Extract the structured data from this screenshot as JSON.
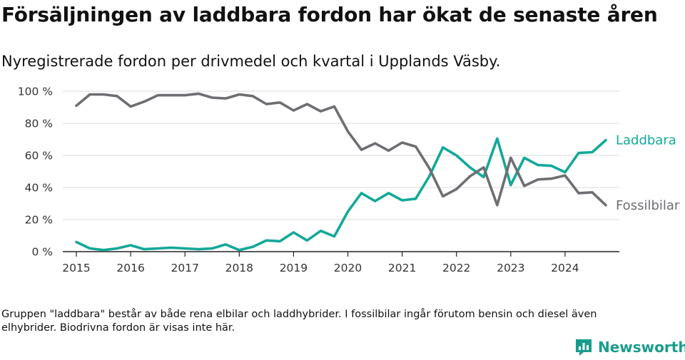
{
  "title": "Försäljningen av laddbara fordon har ökat de senaste åren",
  "subtitle": "Nyregistrerade fordon per drivmedel och kvartal i Upplands Väsby.",
  "footnote": "Gruppen \"laddbara\" består av både rena elbilar och laddhybrider. I fossilbilar ingår förutom bensin och diesel även elhybrider. Biodrivna fordon är visas inte här.",
  "brand": {
    "name": "Newsworthy",
    "icon": "newsworthy-logo-icon",
    "color": "#1a9c8c"
  },
  "chart_data": {
    "type": "line",
    "title": "Försäljningen av laddbara fordon har ökat de senaste åren",
    "subtitle": "Nyregistrerade fordon per drivmedel och kvartal i Upplands Väsby.",
    "xlabel": "",
    "ylabel": "",
    "x_start": 2015.0,
    "x_step": 0.25,
    "xlim": [
      2014.75,
      2025.0
    ],
    "ylim": [
      0,
      100
    ],
    "xticks": [
      2015,
      2016,
      2017,
      2018,
      2019,
      2020,
      2021,
      2022,
      2023,
      2024
    ],
    "yticks": [
      0,
      20,
      40,
      60,
      80,
      100
    ],
    "ytick_labels": [
      "0 %",
      "20 %",
      "40 %",
      "60 %",
      "80 %",
      "100 %"
    ],
    "grid": true,
    "legend": "inline-right",
    "series": [
      {
        "name": "Laddbara",
        "color": "#14a898",
        "values": [
          6,
          2,
          1,
          2,
          4,
          1.5,
          2,
          2.5,
          2,
          1.5,
          2,
          4.5,
          1,
          3,
          7,
          6.5,
          12,
          7,
          13,
          9.5,
          25,
          36.5,
          31.5,
          36.5,
          32,
          33,
          47,
          65,
          60,
          52.5,
          46.5,
          70.5,
          41.5,
          58.5,
          54,
          53.5,
          49.5,
          61.5,
          62,
          69.5
        ]
      },
      {
        "name": "Fossilbilar",
        "color": "#6e6e73",
        "values": [
          91,
          98,
          98,
          97,
          90.5,
          93.5,
          97.5,
          97.5,
          97.5,
          98.5,
          96,
          95.5,
          98,
          97,
          92,
          93,
          88,
          92,
          87.5,
          90.5,
          75,
          63.5,
          67.5,
          63,
          68,
          65.5,
          52,
          34.5,
          39,
          47,
          52.5,
          29,
          58.5,
          41,
          45,
          45.5,
          47.5,
          36.5,
          37,
          29
        ]
      }
    ]
  }
}
